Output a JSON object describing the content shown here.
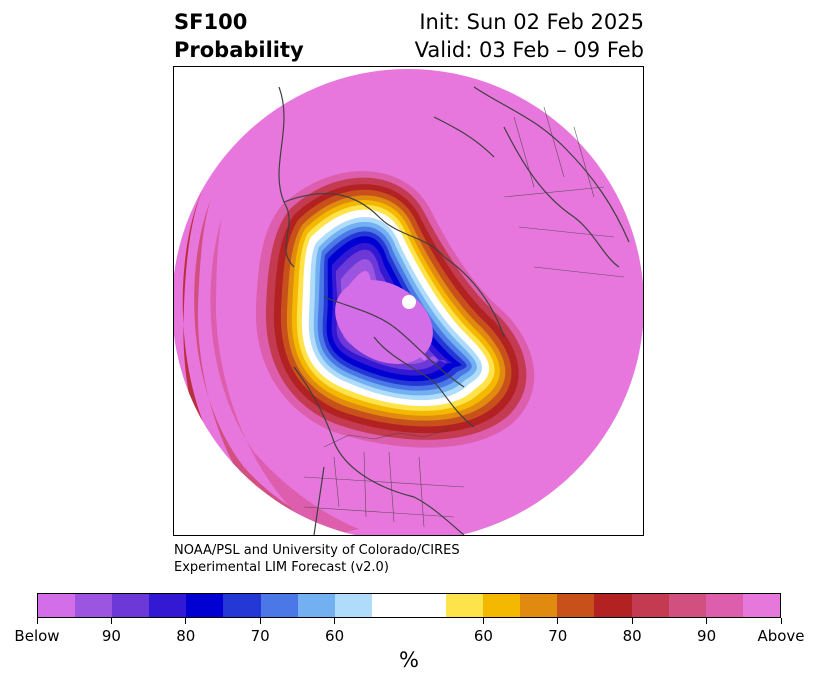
{
  "title": {
    "left_line1": "SF100",
    "left_line2": "Probability",
    "right_line1": "Init: Sun 02 Feb 2025",
    "right_line2": "Valid: 03 Feb – 09 Feb"
  },
  "credit": {
    "line1": "NOAA/PSL and University of Colorado/CIRES",
    "line2": "Experimental LIM Forecast (v2.0)"
  },
  "colorbar": {
    "colors": [
      "#d36ee8",
      "#9b55e0",
      "#6c38d8",
      "#3318d4",
      "#0000d2",
      "#2438d6",
      "#4b78e6",
      "#72b0f2",
      "#aedcfa",
      "#ffffff",
      "#ffe34a",
      "#f5b800",
      "#e08a10",
      "#c8501a",
      "#b22222",
      "#c43a50",
      "#d25080",
      "#dc5eac",
      "#e678dc"
    ],
    "tick_labels": [
      "Below",
      "90",
      "80",
      "70",
      "60",
      "60",
      "70",
      "80",
      "90",
      "Above"
    ],
    "units": "%"
  },
  "map": {
    "projection": "north-polar-stereographic",
    "background_color": "#e777dc",
    "coastline_color": "#404040"
  }
}
